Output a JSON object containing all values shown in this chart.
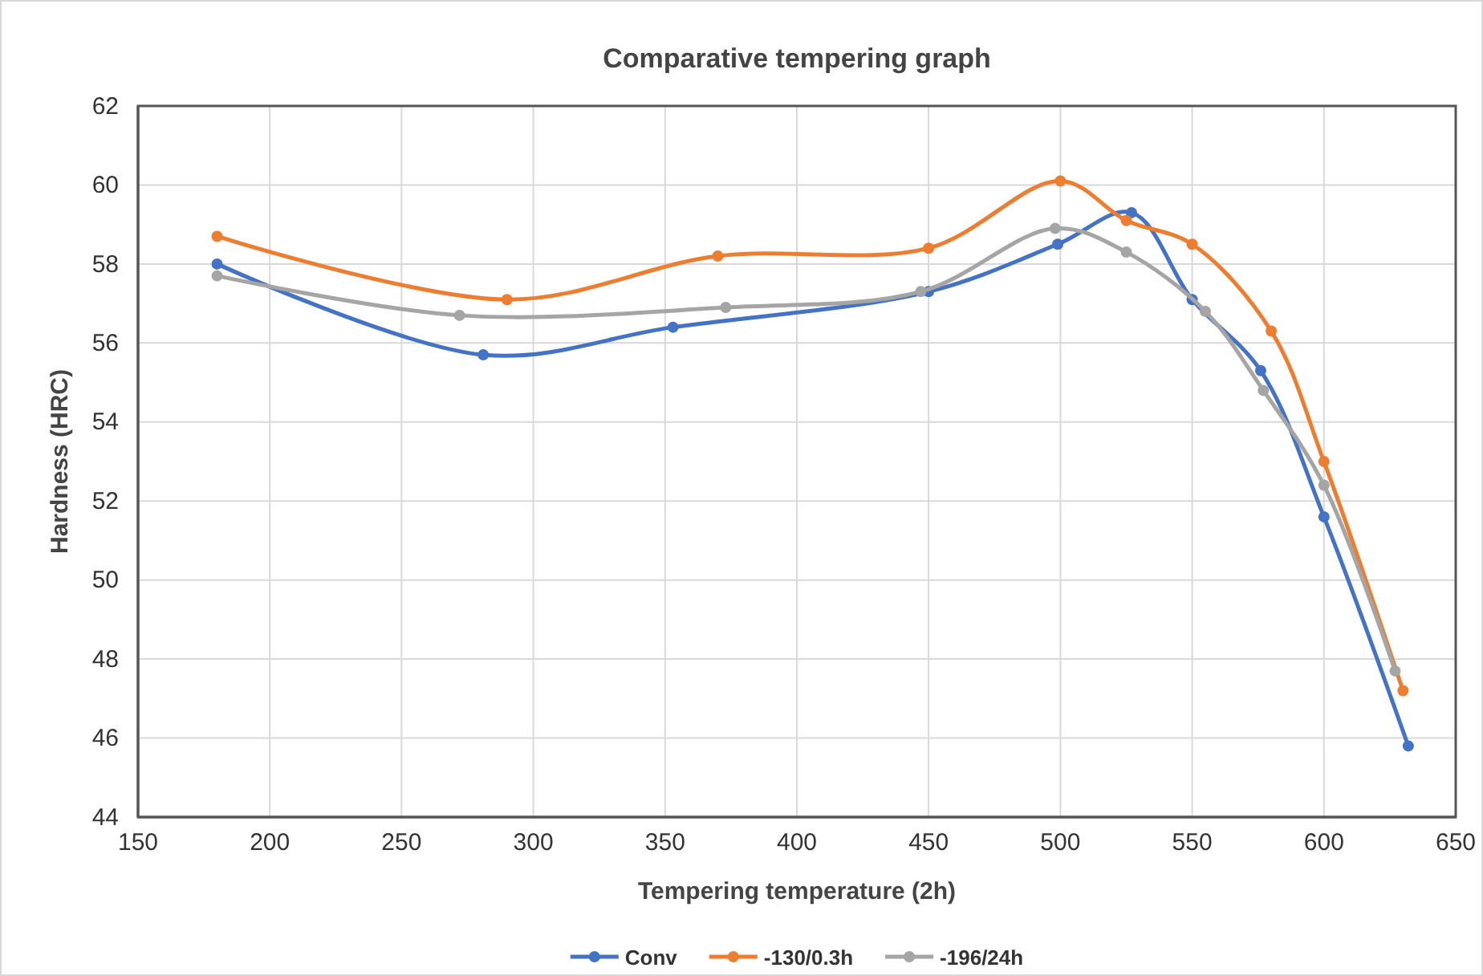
{
  "chart_data": {
    "type": "line",
    "title": "Comparative tempering  graph",
    "xlabel": "Tempering temperature (2h)",
    "ylabel": "Hardness (HRC)",
    "xlim": [
      150,
      650
    ],
    "xticks": [
      150,
      200,
      250,
      300,
      350,
      400,
      450,
      500,
      550,
      600,
      650
    ],
    "ylim": [
      44,
      62
    ],
    "yticks": [
      44,
      46,
      48,
      50,
      52,
      54,
      56,
      58,
      60,
      62
    ],
    "grid": true,
    "legend": "bottom",
    "marker": "circle",
    "line_style": "solid",
    "series": [
      {
        "name": "Conv",
        "color": "#4472c4",
        "x": [
          180,
          281,
          353,
          450,
          499,
          527,
          550,
          576,
          600,
          632
        ],
        "values": [
          58.0,
          55.7,
          56.4,
          57.3,
          58.5,
          59.3,
          57.1,
          55.3,
          51.6,
          45.8
        ]
      },
      {
        "name": "-130/0.3h",
        "color": "#ed7d31",
        "x": [
          180,
          290,
          370,
          450,
          500,
          525,
          550,
          580,
          600,
          630
        ],
        "values": [
          58.7,
          57.1,
          58.2,
          58.4,
          60.1,
          59.1,
          58.5,
          56.3,
          53.0,
          47.2
        ]
      },
      {
        "name": "-196/24h",
        "color": "#a5a5a5",
        "x": [
          180,
          272,
          373,
          447,
          498,
          525,
          555,
          577,
          600,
          627
        ],
        "values": [
          57.7,
          56.7,
          56.9,
          57.3,
          58.9,
          58.3,
          56.8,
          54.8,
          52.4,
          47.7
        ]
      }
    ]
  }
}
